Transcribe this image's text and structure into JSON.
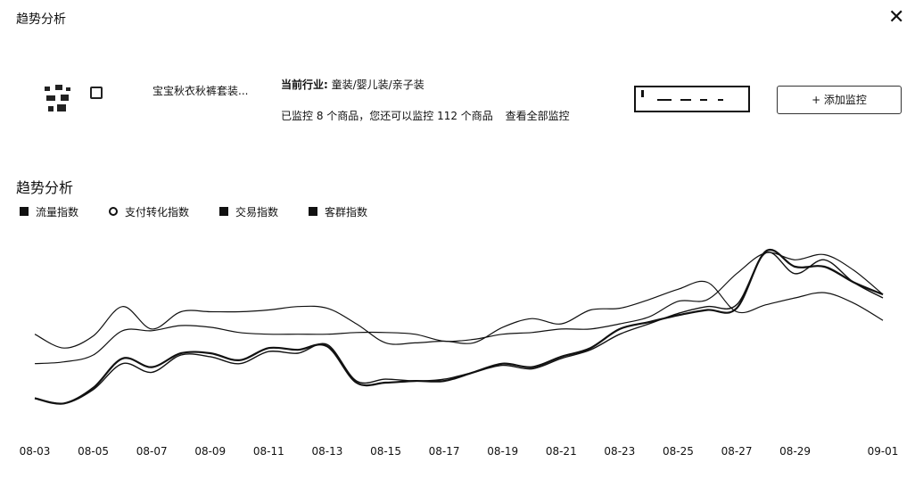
{
  "dialog": {
    "title": "趋势分析",
    "close_icon": "close-icon"
  },
  "product": {
    "name": "宝宝秋衣秋裤套装..."
  },
  "industry": {
    "label": "当前行业:",
    "value": "童装/婴儿装/亲子装"
  },
  "monitor": {
    "text": "已监控 8 个商品，您还可以监控 112 个商品",
    "view_all": "查看全部监控"
  },
  "add_button": {
    "label": "+ 添加监控"
  },
  "section": {
    "title": "趋势分析"
  },
  "legend": [
    "流量指数",
    "支付转化指数",
    "交易指数",
    "客群指数"
  ],
  "chart_data": {
    "type": "line",
    "categories": [
      "08-03",
      "08-04",
      "08-05",
      "08-06",
      "08-07",
      "08-08",
      "08-09",
      "08-10",
      "08-11",
      "08-12",
      "08-13",
      "08-14",
      "08-15",
      "08-16",
      "08-17",
      "08-18",
      "08-19",
      "08-20",
      "08-21",
      "08-22",
      "08-23",
      "08-24",
      "08-25",
      "08-26",
      "08-27",
      "08-28",
      "08-29",
      "08-30",
      "08-31",
      "09-01"
    ],
    "x_tick_labels": [
      "08-03",
      "08-05",
      "08-07",
      "08-09",
      "08-11",
      "08-13",
      "08-15",
      "08-17",
      "08-19",
      "08-21",
      "08-23",
      "08-25",
      "08-27",
      "08-29",
      "09-01"
    ],
    "ylim": [
      0,
      100
    ],
    "grid": false,
    "series": [
      {
        "name": "流量指数",
        "values": [
          28,
          29,
          33,
          47,
          47,
          50,
          49,
          46,
          45,
          45,
          45,
          46,
          46,
          45,
          41,
          42,
          45,
          46,
          48,
          48,
          51,
          55,
          64,
          65,
          80,
          92,
          88,
          91,
          82,
          68
        ]
      },
      {
        "name": "支付转化指数",
        "values": [
          45,
          37,
          44,
          61,
          48,
          58,
          58,
          58,
          59,
          61,
          60,
          51,
          40,
          40,
          41,
          40,
          49,
          54,
          51,
          59,
          60,
          65,
          71,
          75,
          58,
          62,
          66,
          69,
          63,
          53
        ]
      },
      {
        "name": "交易指数",
        "values": [
          8,
          5,
          13,
          28,
          23,
          33,
          32,
          28,
          35,
          34,
          39,
          18,
          19,
          18,
          19,
          23,
          27,
          25,
          31,
          36,
          45,
          51,
          57,
          61,
          62,
          92,
          80,
          88,
          75,
          66
        ]
      },
      {
        "name": "客群指数",
        "values": [
          8,
          5,
          14,
          31,
          26,
          34,
          34,
          30,
          37,
          36,
          38,
          17,
          17,
          18,
          18,
          23,
          28,
          26,
          32,
          37,
          48,
          52,
          56,
          59,
          60,
          93,
          84,
          84,
          75,
          68
        ]
      }
    ]
  }
}
